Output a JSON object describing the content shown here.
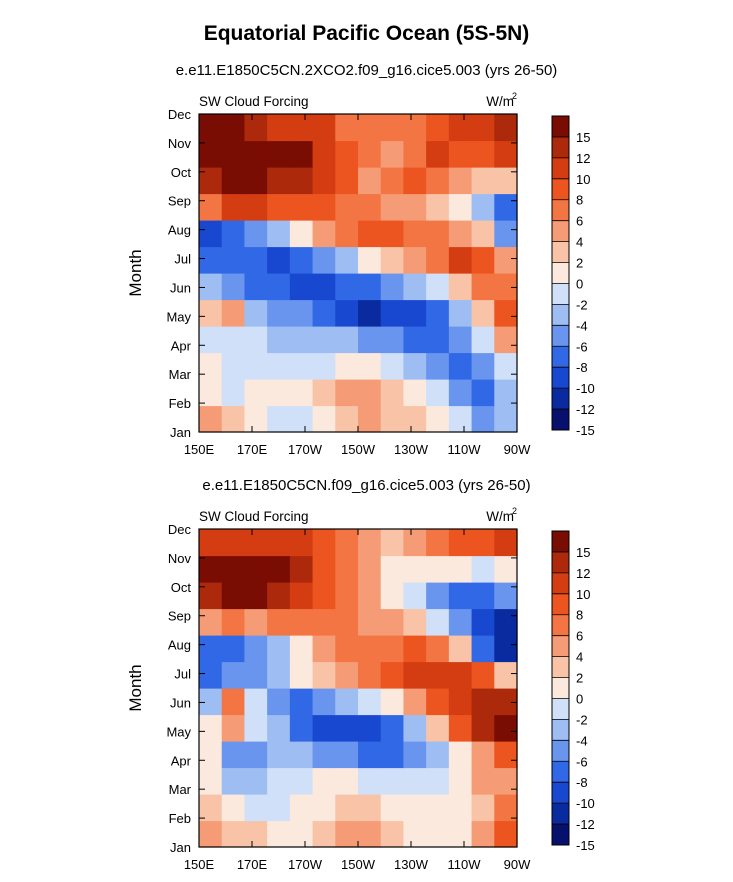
{
  "page_title": "Equatorial Pacific Ocean (5S-5N)",
  "colors": {
    "levels": [
      "#08106e",
      "#0a2ba0",
      "#1848d0",
      "#3168e6",
      "#6a95ee",
      "#9ebdf3",
      "#cfe0f8",
      "#fbe9de",
      "#f8c3a6",
      "#f59c76",
      "#f27543",
      "#ec5420",
      "#d43c12",
      "#ad290b",
      "#7a0d03"
    ]
  },
  "colorbar": {
    "labels": [
      "15",
      "12",
      "10",
      "8",
      "6",
      "4",
      "2",
      "0",
      "-2",
      "-4",
      "-6",
      "-8",
      "-10",
      "-12",
      "-15"
    ]
  },
  "chart_data": [
    {
      "type": "heatmap",
      "title": "e.e11.E1850C5CN.2XCO2.f09_g16.cice5.003 (yrs 26-50)",
      "left_label": "SW Cloud Forcing",
      "units_label": "W/m",
      "units_sup": "2",
      "ylabel": "Month",
      "x_ticks": [
        "150E",
        "170E",
        "170W",
        "150W",
        "130W",
        "110W",
        "90W"
      ],
      "y_ticks": [
        "Jan",
        "Feb",
        "Mar",
        "Apr",
        "May",
        "Jun",
        "Jul",
        "Aug",
        "Sep",
        "Oct",
        "Nov",
        "Dec"
      ],
      "z": [
        [
          2,
          0,
          -2,
          -4,
          -3,
          -1,
          1,
          2,
          1,
          0,
          -2,
          -4,
          -8,
          -6
        ],
        [
          -1,
          -3,
          -2,
          -2,
          -1,
          1,
          2,
          2,
          1,
          -1,
          -4,
          -8,
          -10,
          -6
        ],
        [
          -2,
          -3,
          -3,
          -4,
          -4,
          -3,
          -2,
          -2,
          -3,
          -5,
          -8,
          -10,
          -8,
          -3
        ],
        [
          -3,
          -4,
          -4,
          -5,
          -6,
          -6,
          -6,
          -7,
          -8,
          -9,
          -9,
          -7,
          -4,
          2
        ],
        [
          1,
          2,
          -6,
          -7,
          -8,
          -10,
          -12,
          -13,
          -12,
          -11,
          -9,
          -5,
          0,
          6
        ],
        [
          -6,
          -7,
          -9,
          -10,
          -12,
          -12,
          -10,
          -9,
          -8,
          -6,
          -3,
          1,
          5,
          4
        ],
        [
          -9,
          -10,
          -10,
          -12,
          -10,
          -8,
          -5,
          -2,
          1,
          3,
          5,
          8,
          6,
          2
        ],
        [
          -12,
          -10,
          -8,
          -5,
          -1,
          2,
          5,
          6,
          6,
          5,
          4,
          3,
          0,
          -8
        ],
        [
          4,
          8,
          8,
          6,
          6,
          6,
          5,
          4,
          3,
          2,
          0,
          -2,
          -6,
          -10
        ],
        [
          10,
          12,
          12,
          11,
          10,
          8,
          6,
          3,
          4,
          6,
          4,
          2,
          1,
          0
        ],
        [
          12,
          13,
          14,
          14,
          12,
          9,
          6,
          4,
          3,
          5,
          8,
          7,
          6,
          9
        ],
        [
          15,
          13,
          10,
          9,
          9,
          8,
          5,
          4,
          4,
          5,
          7,
          8,
          9,
          11
        ]
      ]
    },
    {
      "type": "heatmap",
      "title": "e.e11.E1850C5CN.f09_g16.cice5.003 (yrs 26-50)",
      "left_label": "SW Cloud Forcing",
      "units_label": "W/m",
      "units_sup": "2",
      "ylabel": "Month",
      "x_ticks": [
        "150E",
        "170E",
        "170W",
        "150W",
        "130W",
        "110W",
        "90W"
      ],
      "y_ticks": [
        "Jan",
        "Feb",
        "Mar",
        "Apr",
        "May",
        "Jun",
        "Jul",
        "Aug",
        "Sep",
        "Oct",
        "Nov",
        "Dec"
      ],
      "z": [
        [
          2,
          1,
          0,
          -1,
          -1,
          1,
          2,
          2,
          0,
          -1,
          -1,
          -1,
          2,
          6
        ],
        [
          1,
          -2,
          -3,
          -3,
          -2,
          -1,
          0,
          0,
          -1,
          -2,
          -2,
          -1,
          1,
          4
        ],
        [
          -1,
          -6,
          -5,
          -4,
          -3,
          -2,
          -2,
          -3,
          -4,
          -4,
          -3,
          -1,
          2,
          3
        ],
        [
          -2,
          -8,
          -8,
          -6,
          -6,
          -7,
          -8,
          -9,
          -9,
          -8,
          -6,
          -1,
          3,
          6
        ],
        [
          -1,
          3,
          -4,
          -6,
          -10,
          -12,
          -12,
          -11,
          -9,
          -5,
          0,
          6,
          11,
          14
        ],
        [
          -6,
          5,
          -4,
          -7,
          -9,
          -8,
          -6,
          -4,
          -1,
          3,
          7,
          9,
          10,
          10
        ],
        [
          -10,
          -8,
          -8,
          -6,
          -2,
          0,
          2,
          4,
          6,
          8,
          9,
          9,
          6,
          0
        ],
        [
          -10,
          -10,
          -8,
          -5,
          -1,
          2,
          4,
          5,
          5,
          6,
          4,
          0,
          -10,
          -15
        ],
        [
          3,
          4,
          3,
          4,
          5,
          5,
          4,
          3,
          2,
          0,
          -4,
          -8,
          -12,
          -14
        ],
        [
          10,
          12,
          12,
          10,
          8,
          6,
          4,
          2,
          -1,
          -3,
          -7,
          -9,
          -10,
          -8
        ],
        [
          12,
          14,
          14,
          12,
          10,
          7,
          5,
          2,
          -1,
          -1,
          -1,
          -2,
          -3,
          -1
        ],
        [
          8,
          9,
          9,
          9,
          8,
          7,
          4,
          2,
          1,
          3,
          5,
          6,
          6,
          8
        ]
      ]
    }
  ]
}
